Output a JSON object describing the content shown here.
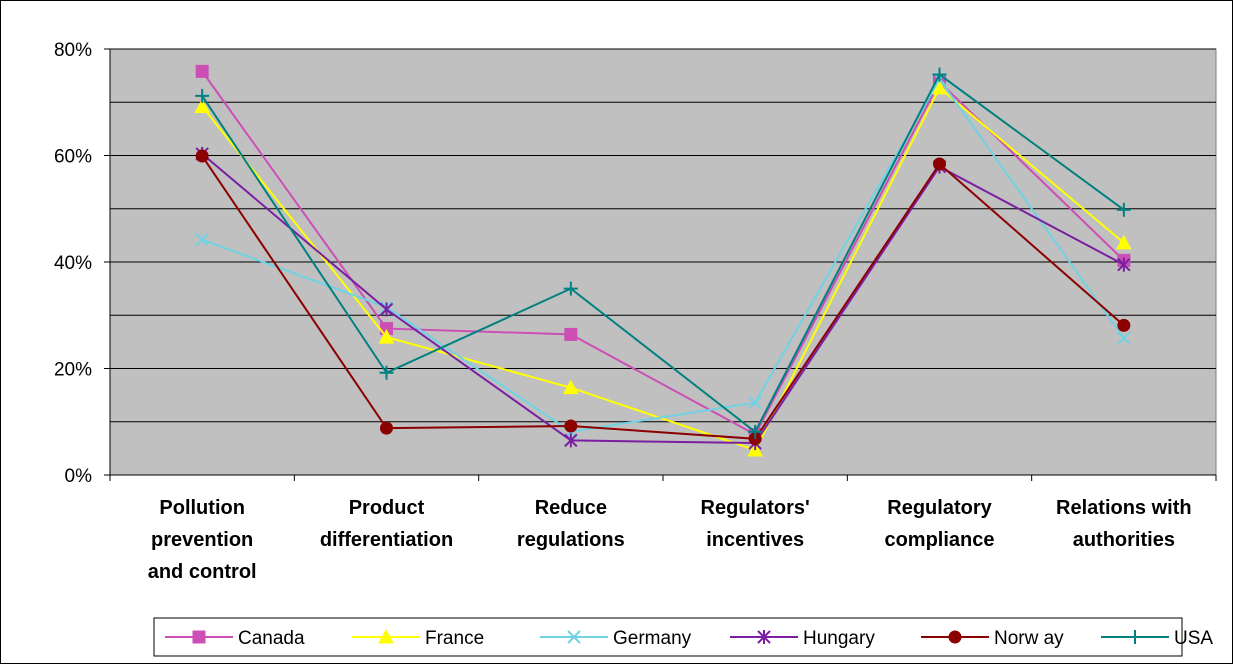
{
  "chart_data": {
    "type": "line",
    "title": "",
    "xlabel": "",
    "ylabel": "",
    "categories": [
      [
        "Pollution",
        "prevention",
        "and control"
      ],
      [
        "Product",
        "differentiation"
      ],
      [
        "Reduce",
        "regulations"
      ],
      [
        "Regulators'",
        "incentives"
      ],
      [
        "Regulatory",
        "compliance"
      ],
      [
        "Relations with",
        "authorities"
      ]
    ],
    "ylim": [
      0,
      80
    ],
    "yticks": [
      0,
      20,
      40,
      60,
      80
    ],
    "ytick_labels": [
      "0%",
      "20%",
      "40%",
      "60%",
      "80%"
    ],
    "grid": true,
    "legend_position": "bottom",
    "series": [
      {
        "name": "Canada",
        "color": "#cc4fb5",
        "marker": "square",
        "values": [
          75.8,
          27.5,
          26.4,
          7.6,
          73.8,
          40.3
        ]
      },
      {
        "name": "France",
        "color": "#ffff00",
        "marker": "triangle",
        "values": [
          69.2,
          25.9,
          16.4,
          4.7,
          72.7,
          43.6
        ]
      },
      {
        "name": "Germany",
        "color": "#6fd3e3",
        "marker": "x",
        "values": [
          44.2,
          31.5,
          8.1,
          13.6,
          74.3,
          25.7
        ]
      },
      {
        "name": "Hungary",
        "color": "#7b1fa2",
        "marker": "asterisk",
        "values": [
          60.3,
          31.1,
          6.5,
          6.0,
          57.9,
          39.5
        ]
      },
      {
        "name": "Norw ay",
        "color": "#8b0000",
        "marker": "circle",
        "values": [
          59.9,
          8.8,
          9.2,
          6.8,
          58.4,
          28.1
        ]
      },
      {
        "name": "USA",
        "color": "#008080",
        "marker": "plus",
        "values": [
          71.2,
          19.2,
          35.0,
          8.1,
          75.2,
          49.8
        ]
      }
    ],
    "plot_background": "#c0c0c0"
  }
}
